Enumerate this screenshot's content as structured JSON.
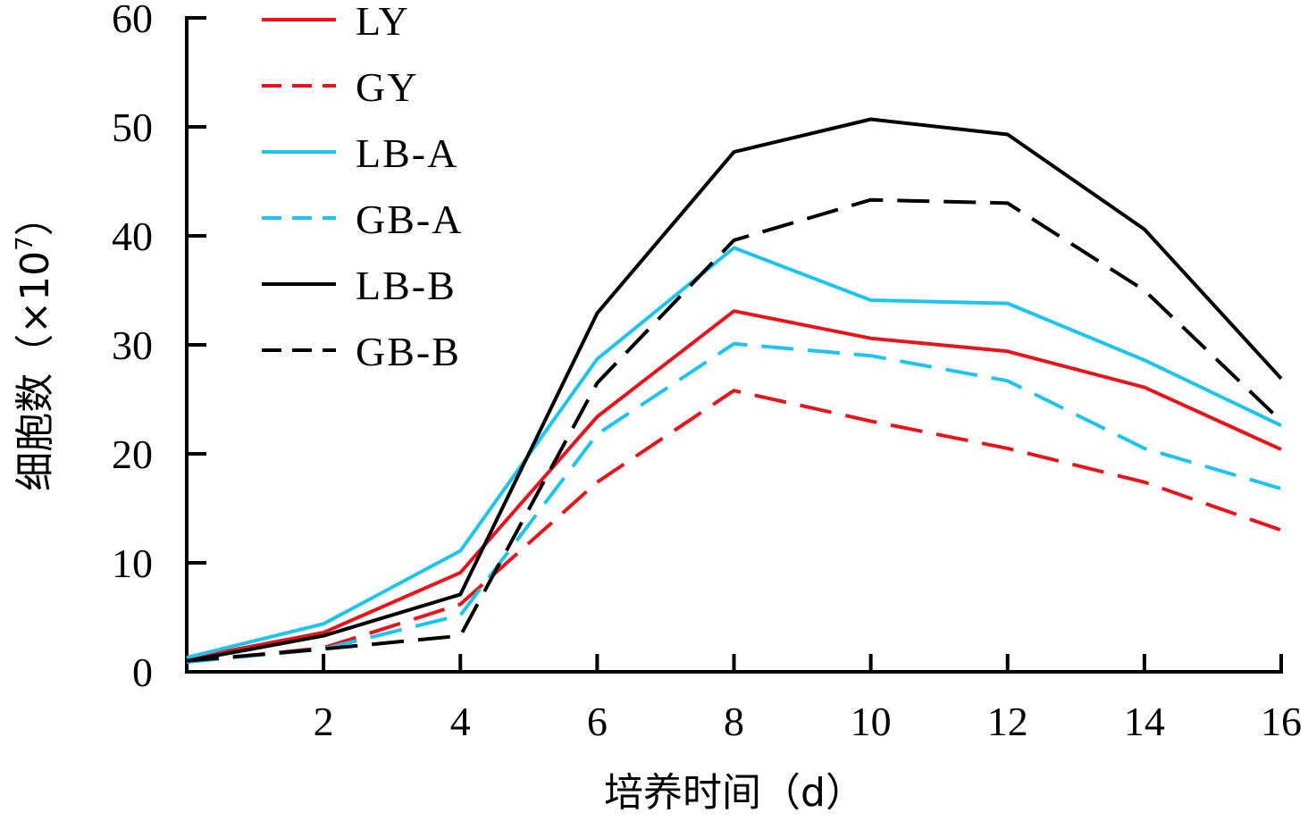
{
  "chart_data": {
    "type": "line",
    "title": "",
    "xlabel": "培养时间（d）",
    "ylabel": "细胞数（×10",
    "ylabel_exponent": "7",
    "ylabel_close": "）",
    "x": [
      0,
      2,
      4,
      6,
      8,
      10,
      12,
      14,
      16
    ],
    "x_ticks": [
      2,
      4,
      6,
      8,
      10,
      12,
      14,
      16
    ],
    "y_ticks": [
      0,
      10,
      20,
      30,
      40,
      50,
      60
    ],
    "xlim": [
      0,
      16
    ],
    "ylim": [
      0,
      60
    ],
    "grid": false,
    "legend_position": "top-left",
    "series": [
      {
        "name": "LY",
        "color": "#e8141c",
        "dash": "solid",
        "values": [
          1.2,
          3.6,
          9.1,
          23.4,
          33.1,
          30.6,
          29.4,
          26.1,
          20.4
        ]
      },
      {
        "name": "GY",
        "color": "#e8141c",
        "dash": "dashed",
        "values": [
          0.9,
          2.2,
          6.2,
          17.4,
          25.8,
          23.0,
          20.5,
          17.4,
          13.0
        ]
      },
      {
        "name": "LB-A",
        "color": "#1ec3f0",
        "dash": "solid",
        "values": [
          1.3,
          4.4,
          11.1,
          28.7,
          38.9,
          34.1,
          33.8,
          28.6,
          22.6
        ]
      },
      {
        "name": "GB-A",
        "color": "#1ec3f0",
        "dash": "dashed",
        "values": [
          0.9,
          2.1,
          5.2,
          21.8,
          30.1,
          29.0,
          26.7,
          20.5,
          16.8
        ]
      },
      {
        "name": "LB-B",
        "color": "#000000",
        "dash": "solid",
        "values": [
          1.0,
          3.3,
          7.1,
          32.9,
          47.7,
          50.7,
          49.3,
          40.6,
          26.9
        ]
      },
      {
        "name": "GB-B",
        "color": "#000000",
        "dash": "dashed",
        "values": [
          1.0,
          2.1,
          3.3,
          26.5,
          39.6,
          43.3,
          43.0,
          35.0,
          23.0
        ]
      }
    ]
  }
}
